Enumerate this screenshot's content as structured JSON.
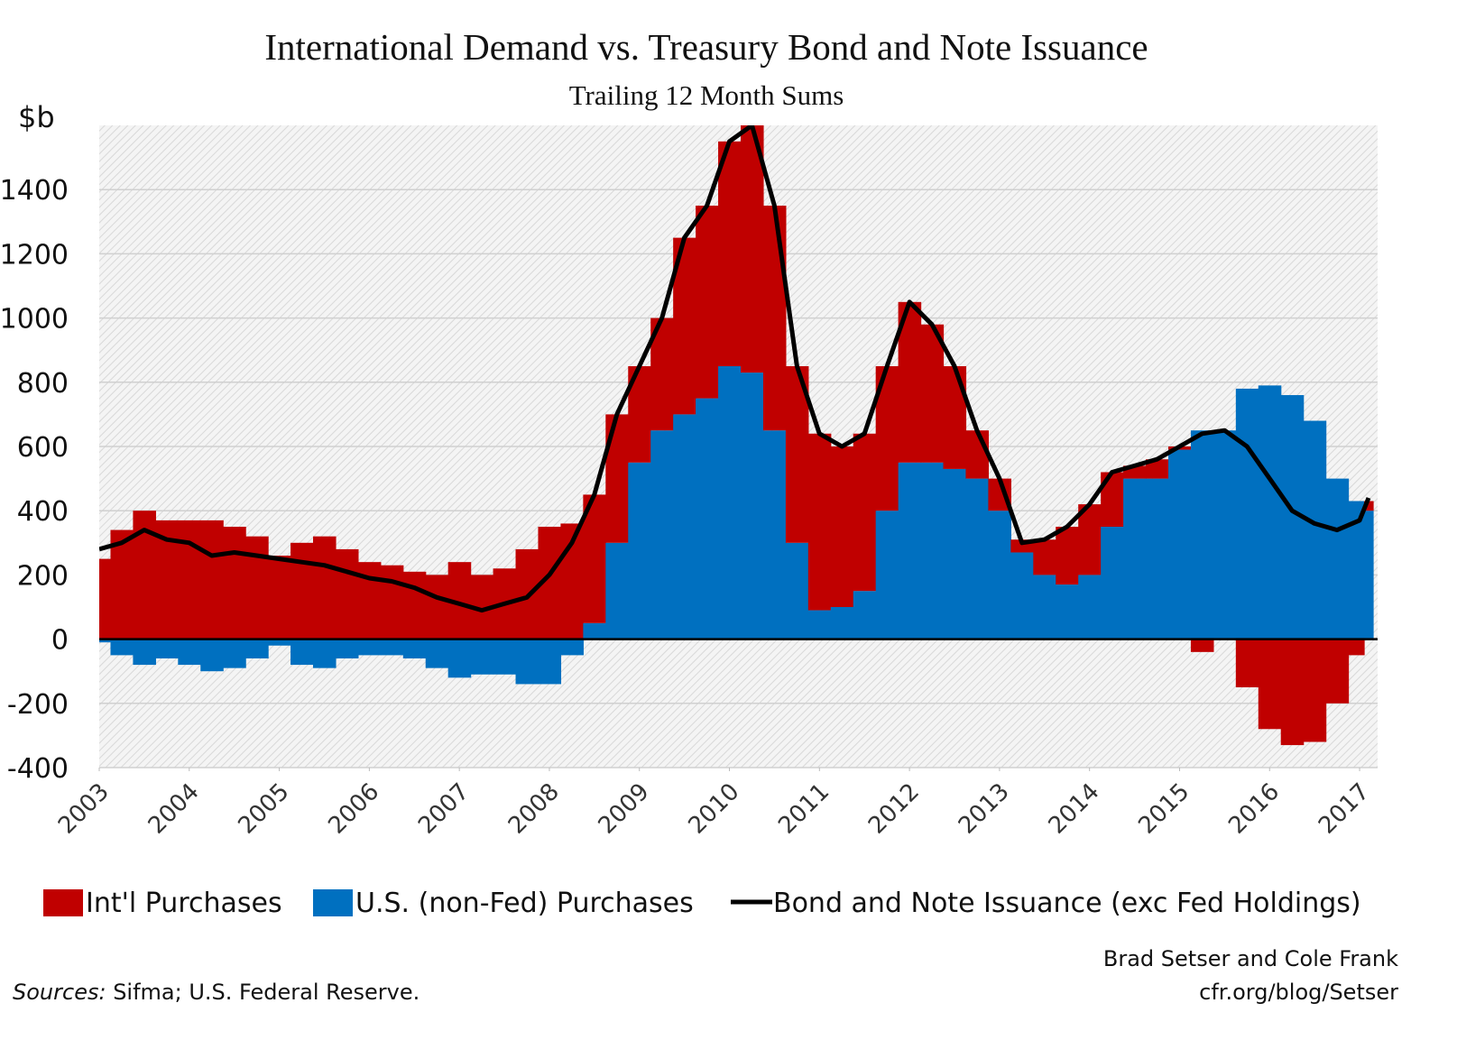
{
  "chart_data": {
    "type": "bar",
    "title": "International Demand vs. Treasury Bond and Note Issuance",
    "subtitle": "Trailing 12 Month Sums",
    "y_label": "$b",
    "x": [
      2003.0,
      2003.25,
      2003.5,
      2003.75,
      2004.0,
      2004.25,
      2004.5,
      2004.75,
      2005.0,
      2005.25,
      2005.5,
      2005.75,
      2006.0,
      2006.25,
      2006.5,
      2006.75,
      2007.0,
      2007.25,
      2007.5,
      2007.75,
      2008.0,
      2008.25,
      2008.5,
      2008.75,
      2009.0,
      2009.25,
      2009.5,
      2009.75,
      2010.0,
      2010.25,
      2010.5,
      2010.75,
      2011.0,
      2011.25,
      2011.5,
      2011.75,
      2012.0,
      2012.25,
      2012.5,
      2012.75,
      2013.0,
      2013.25,
      2013.5,
      2013.75,
      2014.0,
      2014.25,
      2014.5,
      2014.75,
      2015.0,
      2015.25,
      2015.5,
      2015.75,
      2016.0,
      2016.25,
      2016.5,
      2016.75,
      2017.0,
      2017.1
    ],
    "series": [
      {
        "name": "U.S. (non-Fed) Purchases",
        "color": "#0070c0",
        "style": "bar",
        "values": [
          -10,
          -50,
          -80,
          -60,
          -80,
          -100,
          -90,
          -60,
          -20,
          -80,
          -90,
          -60,
          -50,
          -50,
          -60,
          -90,
          -120,
          -110,
          -110,
          -140,
          -140,
          -50,
          50,
          300,
          550,
          650,
          700,
          750,
          850,
          830,
          650,
          300,
          90,
          100,
          150,
          400,
          550,
          550,
          530,
          500,
          400,
          270,
          200,
          170,
          200,
          350,
          500,
          500,
          590,
          650,
          650,
          780,
          790,
          760,
          680,
          500,
          430,
          400
        ]
      },
      {
        "name": "Int'l Purchases",
        "color": "#c00000",
        "style": "bar",
        "values": [
          250,
          340,
          400,
          370,
          370,
          370,
          350,
          320,
          260,
          300,
          320,
          280,
          240,
          230,
          210,
          200,
          240,
          200,
          220,
          280,
          350,
          360,
          400,
          400,
          300,
          350,
          550,
          600,
          700,
          780,
          700,
          550,
          550,
          500,
          490,
          450,
          500,
          430,
          320,
          150,
          100,
          40,
          110,
          180,
          220,
          170,
          40,
          60,
          10,
          -40,
          0,
          -150,
          -280,
          -330,
          -320,
          -200,
          -50,
          30
        ]
      },
      {
        "name": "Bond and Note Issuance (exc Fed Holdings)",
        "color": "#000000",
        "style": "line",
        "values": [
          280,
          300,
          340,
          310,
          300,
          260,
          270,
          260,
          250,
          240,
          230,
          210,
          190,
          180,
          160,
          130,
          110,
          90,
          110,
          130,
          200,
          300,
          450,
          700,
          850,
          1000,
          1250,
          1350,
          1550,
          1600,
          1350,
          850,
          640,
          600,
          640,
          850,
          1050,
          980,
          850,
          650,
          500,
          300,
          310,
          350,
          420,
          520,
          540,
          560,
          600,
          640,
          650,
          600,
          500,
          400,
          360,
          340,
          370,
          440
        ]
      }
    ],
    "xlim": [
      2003,
      2017.2
    ],
    "ylim": [
      -400,
      1600
    ],
    "xticks": [
      2003,
      2004,
      2005,
      2006,
      2007,
      2008,
      2009,
      2010,
      2011,
      2012,
      2013,
      2014,
      2015,
      2016,
      2017
    ],
    "yticks": [
      -400,
      -200,
      0,
      200,
      400,
      600,
      800,
      1000,
      1200,
      1400
    ],
    "grid": true,
    "legend": "bottom",
    "source_label": "Sources:",
    "source_text": "Sifma; U.S. Federal Reserve.",
    "credit": [
      "Brad Setser and Cole Frank",
      "cfr.org/blog/Setser"
    ]
  }
}
